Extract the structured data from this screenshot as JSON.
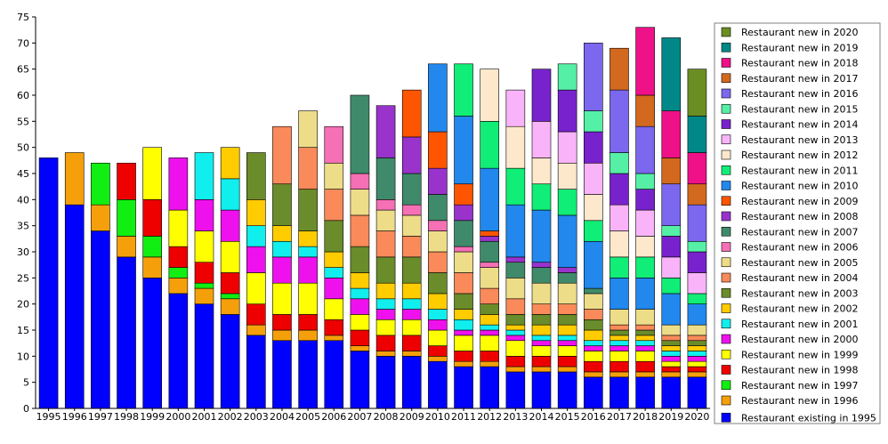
{
  "chart_data": {
    "type": "bar",
    "stacked": true,
    "categories": [
      "1995",
      "1996",
      "1997",
      "1998",
      "1999",
      "2000",
      "2001",
      "2002",
      "2003",
      "2004",
      "2005",
      "2006",
      "2007",
      "2008",
      "2009",
      "2010",
      "2011",
      "2012",
      "2013",
      "2014",
      "2015",
      "2016",
      "2017",
      "2018",
      "2019",
      "2020"
    ],
    "ylim": [
      0,
      75
    ],
    "yticks": [
      0,
      5,
      10,
      15,
      20,
      25,
      30,
      35,
      40,
      45,
      50,
      55,
      60,
      65,
      70,
      75
    ],
    "grid": false,
    "legend_position": "right",
    "series": [
      {
        "name": "Restaurant existing in 1995",
        "color": "#0000ff",
        "values": [
          48,
          39,
          34,
          29,
          25,
          22,
          20,
          18,
          14,
          13,
          13,
          13,
          11,
          10,
          10,
          9,
          8,
          8,
          7,
          7,
          7,
          6,
          6,
          6,
          6,
          6
        ]
      },
      {
        "name": "Restaurant new in 1996",
        "color": "#f5a00a",
        "values": [
          0,
          10,
          5,
          4,
          4,
          3,
          3,
          3,
          2,
          2,
          2,
          1,
          1,
          1,
          1,
          1,
          1,
          1,
          1,
          1,
          1,
          1,
          1,
          1,
          1,
          1
        ]
      },
      {
        "name": "Restaurant new in 1997",
        "color": "#11ee11",
        "values": [
          0,
          0,
          8,
          7,
          4,
          2,
          1,
          1,
          0,
          0,
          0,
          0,
          0,
          0,
          0,
          0,
          0,
          0,
          0,
          0,
          0,
          0,
          0,
          0,
          0,
          0
        ]
      },
      {
        "name": "Restaurant new in 1998",
        "color": "#ee0000",
        "values": [
          0,
          0,
          0,
          7,
          7,
          4,
          4,
          4,
          4,
          3,
          3,
          3,
          3,
          3,
          3,
          2,
          2,
          2,
          2,
          2,
          2,
          2,
          2,
          2,
          1,
          1
        ]
      },
      {
        "name": "Restaurant new in 1999",
        "color": "#ffff00",
        "values": [
          0,
          0,
          0,
          0,
          10,
          7,
          6,
          6,
          6,
          6,
          6,
          4,
          3,
          3,
          3,
          3,
          3,
          3,
          3,
          2,
          2,
          2,
          2,
          2,
          1,
          1
        ]
      },
      {
        "name": "Restaurant new in 2000",
        "color": "#ee11ee",
        "values": [
          0,
          0,
          0,
          0,
          0,
          10,
          6,
          6,
          5,
          5,
          5,
          4,
          3,
          2,
          2,
          2,
          1,
          1,
          1,
          1,
          1,
          1,
          1,
          1,
          1,
          1
        ]
      },
      {
        "name": "Restaurant new in 2001",
        "color": "#11eeee",
        "values": [
          0,
          0,
          0,
          0,
          0,
          0,
          9,
          6,
          4,
          3,
          2,
          2,
          2,
          2,
          2,
          2,
          2,
          1,
          1,
          1,
          1,
          1,
          1,
          1,
          1,
          1
        ]
      },
      {
        "name": "Restaurant new in 2002",
        "color": "#ffcc00",
        "values": [
          0,
          0,
          0,
          0,
          0,
          0,
          0,
          6,
          5,
          3,
          3,
          3,
          3,
          3,
          3,
          3,
          2,
          2,
          1,
          2,
          2,
          2,
          1,
          1,
          1,
          1
        ]
      },
      {
        "name": "Restaurant new in 2003",
        "color": "#6a8c2a",
        "values": [
          0,
          0,
          0,
          0,
          0,
          0,
          0,
          0,
          9,
          8,
          8,
          6,
          5,
          5,
          5,
          4,
          3,
          2,
          2,
          2,
          2,
          2,
          1,
          1,
          1,
          1
        ]
      },
      {
        "name": "Restaurant new in 2004",
        "color": "#fa8a5a",
        "values": [
          0,
          0,
          0,
          0,
          0,
          0,
          0,
          0,
          0,
          11,
          8,
          6,
          6,
          5,
          4,
          4,
          4,
          3,
          3,
          2,
          2,
          2,
          1,
          1,
          1,
          1
        ]
      },
      {
        "name": "Restaurant new in 2005",
        "color": "#eedd88",
        "values": [
          0,
          0,
          0,
          0,
          0,
          0,
          0,
          0,
          0,
          0,
          7,
          5,
          5,
          4,
          4,
          4,
          4,
          4,
          4,
          4,
          4,
          3,
          3,
          3,
          2,
          2
        ]
      },
      {
        "name": "Restaurant new in 2006",
        "color": "#f570b5",
        "values": [
          0,
          0,
          0,
          0,
          0,
          0,
          0,
          0,
          0,
          0,
          0,
          7,
          3,
          2,
          2,
          2,
          1,
          1,
          0,
          0,
          0,
          0,
          0,
          0,
          0,
          0
        ]
      },
      {
        "name": "Restaurant new in 2007",
        "color": "#3f8a6a",
        "values": [
          0,
          0,
          0,
          0,
          0,
          0,
          0,
          0,
          0,
          0,
          0,
          0,
          15,
          8,
          6,
          5,
          5,
          4,
          3,
          3,
          2,
          1,
          0,
          0,
          0,
          0
        ]
      },
      {
        "name": "Restaurant new in 2008",
        "color": "#9933cc",
        "values": [
          0,
          0,
          0,
          0,
          0,
          0,
          0,
          0,
          0,
          0,
          0,
          0,
          0,
          10,
          7,
          5,
          3,
          1,
          1,
          1,
          1,
          0,
          0,
          0,
          0,
          0
        ]
      },
      {
        "name": "Restaurant new in 2009",
        "color": "#ff5500",
        "values": [
          0,
          0,
          0,
          0,
          0,
          0,
          0,
          0,
          0,
          0,
          0,
          0,
          0,
          0,
          9,
          7,
          4,
          1,
          0,
          0,
          0,
          0,
          0,
          0,
          0,
          0
        ]
      },
      {
        "name": "Restaurant new in 2010",
        "color": "#2288ee",
        "values": [
          0,
          0,
          0,
          0,
          0,
          0,
          0,
          0,
          0,
          0,
          0,
          0,
          0,
          0,
          0,
          13,
          13,
          12,
          10,
          10,
          10,
          9,
          6,
          6,
          6,
          4
        ]
      },
      {
        "name": "Restaurant new in 2011",
        "color": "#11ee77",
        "values": [
          0,
          0,
          0,
          0,
          0,
          0,
          0,
          0,
          0,
          0,
          0,
          0,
          0,
          0,
          0,
          0,
          10,
          9,
          7,
          5,
          5,
          4,
          4,
          4,
          3,
          2
        ]
      },
      {
        "name": "Restaurant new in 2012",
        "color": "#fde8cc",
        "values": [
          0,
          0,
          0,
          0,
          0,
          0,
          0,
          0,
          0,
          0,
          0,
          0,
          0,
          0,
          0,
          0,
          0,
          10,
          8,
          5,
          5,
          5,
          5,
          4,
          0,
          0
        ]
      },
      {
        "name": "Restaurant new in 2013",
        "color": "#f9b4f9",
        "values": [
          0,
          0,
          0,
          0,
          0,
          0,
          0,
          0,
          0,
          0,
          0,
          0,
          0,
          0,
          0,
          0,
          0,
          0,
          7,
          7,
          6,
          6,
          5,
          5,
          4,
          4
        ]
      },
      {
        "name": "Restaurant new in 2014",
        "color": "#7722cc",
        "values": [
          0,
          0,
          0,
          0,
          0,
          0,
          0,
          0,
          0,
          0,
          0,
          0,
          0,
          0,
          0,
          0,
          0,
          0,
          0,
          10,
          8,
          6,
          6,
          4,
          4,
          4
        ]
      },
      {
        "name": "Restaurant new in 2015",
        "color": "#55f0a5",
        "values": [
          0,
          0,
          0,
          0,
          0,
          0,
          0,
          0,
          0,
          0,
          0,
          0,
          0,
          0,
          0,
          0,
          0,
          0,
          0,
          0,
          5,
          4,
          4,
          3,
          2,
          2
        ]
      },
      {
        "name": "Restaurant new in 2016",
        "color": "#7b68ee",
        "values": [
          0,
          0,
          0,
          0,
          0,
          0,
          0,
          0,
          0,
          0,
          0,
          0,
          0,
          0,
          0,
          0,
          0,
          0,
          0,
          0,
          0,
          13,
          12,
          9,
          8,
          7
        ]
      },
      {
        "name": "Restaurant new in 2017",
        "color": "#d2691e",
        "values": [
          0,
          0,
          0,
          0,
          0,
          0,
          0,
          0,
          0,
          0,
          0,
          0,
          0,
          0,
          0,
          0,
          0,
          0,
          0,
          0,
          0,
          0,
          8,
          6,
          5,
          4
        ]
      },
      {
        "name": "Restaurant new in 2018",
        "color": "#ee1188",
        "values": [
          0,
          0,
          0,
          0,
          0,
          0,
          0,
          0,
          0,
          0,
          0,
          0,
          0,
          0,
          0,
          0,
          0,
          0,
          0,
          0,
          0,
          0,
          0,
          13,
          9,
          6
        ]
      },
      {
        "name": "Restaurant new in 2019",
        "color": "#008888",
        "values": [
          0,
          0,
          0,
          0,
          0,
          0,
          0,
          0,
          0,
          0,
          0,
          0,
          0,
          0,
          0,
          0,
          0,
          0,
          0,
          0,
          0,
          0,
          0,
          0,
          14,
          7
        ]
      },
      {
        "name": "Restaurant new in 2020",
        "color": "#6b8e23",
        "values": [
          0,
          0,
          0,
          0,
          0,
          0,
          0,
          0,
          0,
          0,
          0,
          0,
          0,
          0,
          0,
          0,
          0,
          0,
          0,
          0,
          0,
          0,
          0,
          0,
          0,
          9
        ]
      }
    ]
  }
}
